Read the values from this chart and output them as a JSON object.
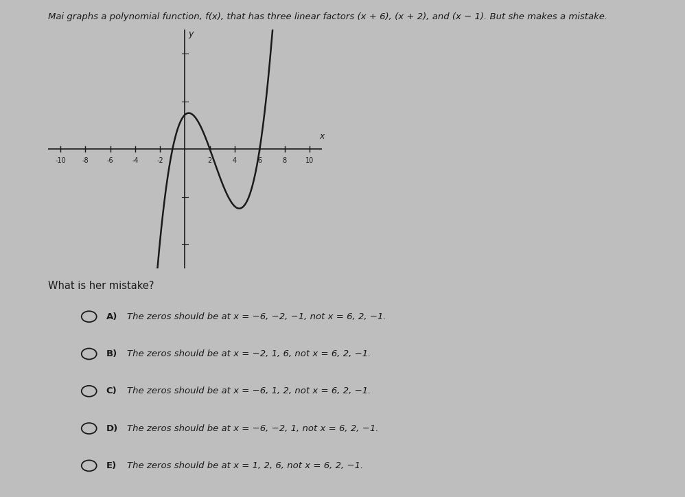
{
  "title": "Mai graphs a polynomial function, f(x), that has three linear factors (x + 6), (x + 2), and (x − 1). But she makes a mistake.",
  "background_color": "#bebebe",
  "graph_bg_color": "#d8d8d8",
  "curve_color": "#1a1a1a",
  "axis_color": "#1a1a1a",
  "text_color": "#1a1a1a",
  "xlim": [
    -11,
    11
  ],
  "ylim": [
    -5,
    5
  ],
  "x_ticks": [
    -10,
    -8,
    -6,
    -4,
    -2,
    2,
    4,
    6,
    8,
    10
  ],
  "zeros": [
    -1,
    2,
    6
  ],
  "scale": 0.12,
  "question": "What is her mistake?",
  "options": [
    {
      "label": "A)",
      "text": "The zeros should be at x = −6, −2, −1, not x = 6, 2, −1."
    },
    {
      "label": "B)",
      "text": "The zeros should be at x = −2, 1, 6, not x = 6, 2, −1."
    },
    {
      "label": "C)",
      "text": "The zeros should be at x = −6, 1, 2, not x = 6, 2, −1."
    },
    {
      "label": "D)",
      "text": "The zeros should be at x = −6, −2, 1, not x = 6, 2, −1."
    },
    {
      "label": "E)",
      "text": "The zeros should be at x = 1, 2, 6, not x = 6, 2, −1."
    }
  ]
}
